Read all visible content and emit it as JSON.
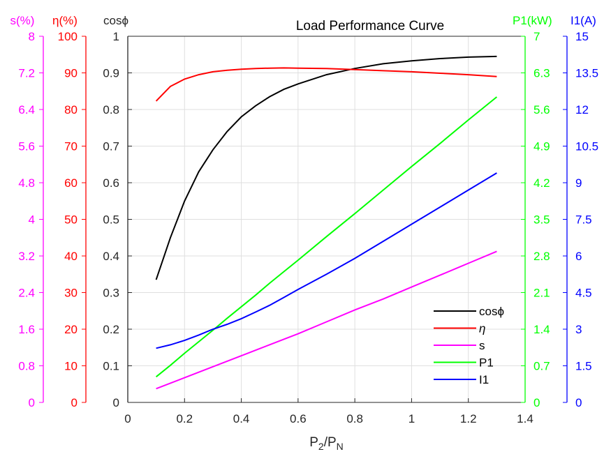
{
  "chart_data": {
    "type": "line",
    "title": "Load Performance Curve",
    "xlabel": "P2/PN",
    "xlim": [
      0,
      1.4
    ],
    "xticks": [
      "0",
      "0.2",
      "0.4",
      "0.6",
      "0.8",
      "1",
      "1.2",
      "1.4"
    ],
    "grid": true,
    "legend_position": "bottom-right",
    "axes": [
      {
        "id": "s",
        "label": "s(%)",
        "side": "left",
        "color": "#ff00ff",
        "ylim": [
          0,
          8
        ],
        "ticks": [
          "0",
          "0.8",
          "1.6",
          "2.4",
          "3.2",
          "4",
          "4.8",
          "5.6",
          "6.4",
          "7.2",
          "8"
        ]
      },
      {
        "id": "eta",
        "label": "η(%)",
        "side": "left",
        "color": "#ff0000",
        "ylim": [
          0,
          100
        ],
        "ticks": [
          "0",
          "10",
          "20",
          "30",
          "40",
          "50",
          "60",
          "70",
          "80",
          "90",
          "100"
        ]
      },
      {
        "id": "cos",
        "label": "cosϕ",
        "side": "left",
        "color": "#262626",
        "ylim": [
          0,
          1
        ],
        "ticks": [
          "0",
          "0.1",
          "0.2",
          "0.3",
          "0.4",
          "0.5",
          "0.6",
          "0.7",
          "0.8",
          "0.9",
          "1"
        ]
      },
      {
        "id": "p1",
        "label": "P1(kW)",
        "side": "right",
        "color": "#00ff00",
        "ylim": [
          0,
          7
        ],
        "ticks": [
          "0",
          "0.7",
          "1.4",
          "2.1",
          "2.8",
          "3.5",
          "4.2",
          "4.9",
          "5.6",
          "6.3",
          "7"
        ]
      },
      {
        "id": "i1",
        "label": "I1(A)",
        "side": "right",
        "color": "#0000ff",
        "ylim": [
          0,
          15
        ],
        "ticks": [
          "0",
          "1.5",
          "3",
          "4.5",
          "6",
          "7.5",
          "9",
          "10.5",
          "12",
          "13.5",
          "15"
        ]
      }
    ],
    "x": [
      0.1,
      0.15,
      0.2,
      0.25,
      0.3,
      0.35,
      0.4,
      0.45,
      0.5,
      0.55,
      0.6,
      0.7,
      0.8,
      0.9,
      1.0,
      1.1,
      1.2,
      1.3
    ],
    "series": [
      {
        "name": "cosϕ",
        "axis": "cos",
        "color": "#000000",
        "values": [
          0.335,
          0.45,
          0.55,
          0.63,
          0.69,
          0.74,
          0.78,
          0.81,
          0.835,
          0.855,
          0.87,
          0.895,
          0.912,
          0.925,
          0.933,
          0.939,
          0.943,
          0.945
        ]
      },
      {
        "name": "η",
        "axis": "eta",
        "color": "#ff0000",
        "values": [
          82.3,
          86.3,
          88.3,
          89.5,
          90.3,
          90.7,
          91.0,
          91.2,
          91.3,
          91.35,
          91.3,
          91.2,
          90.9,
          90.6,
          90.3,
          89.9,
          89.5,
          89.0
        ]
      },
      {
        "name": "s",
        "axis": "s",
        "color": "#ff00ff",
        "values": [
          0.3,
          0.42,
          0.54,
          0.66,
          0.78,
          0.9,
          1.02,
          1.14,
          1.26,
          1.38,
          1.5,
          1.76,
          2.02,
          2.26,
          2.52,
          2.78,
          3.04,
          3.3
        ]
      },
      {
        "name": "P1",
        "axis": "p1",
        "color": "#00ff00",
        "values": [
          0.49,
          0.71,
          0.94,
          1.16,
          1.38,
          1.61,
          1.83,
          2.05,
          2.28,
          2.5,
          2.72,
          3.17,
          3.61,
          4.06,
          4.51,
          4.95,
          5.4,
          5.84
        ]
      },
      {
        "name": "I1",
        "axis": "i1",
        "color": "#0000ff",
        "values": [
          2.22,
          2.36,
          2.54,
          2.76,
          3.0,
          3.2,
          3.43,
          3.7,
          3.98,
          4.3,
          4.63,
          5.25,
          5.9,
          6.6,
          7.3,
          8.0,
          8.7,
          9.4
        ]
      }
    ]
  }
}
